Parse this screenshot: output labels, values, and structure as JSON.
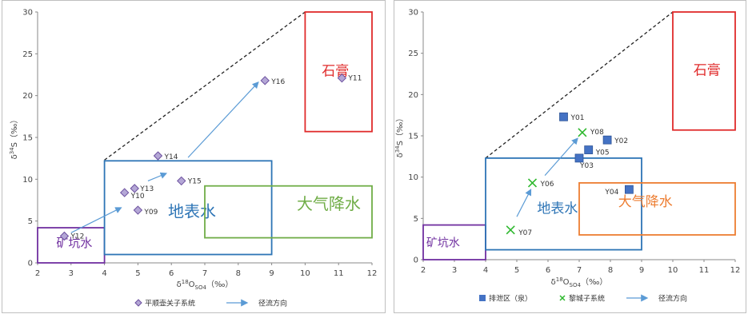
{
  "chart_data": [
    {
      "type": "scatter",
      "xlabel": "δ18OSO4（‰）",
      "ylabel": "δ34S（‰）",
      "xlim": [
        2,
        12
      ],
      "ylim": [
        0,
        30
      ],
      "xticks": [
        "2",
        "3",
        "4",
        "5",
        "6",
        "7",
        "8",
        "9",
        "10",
        "11",
        "12"
      ],
      "yticks": [
        "0",
        "5",
        "10",
        "15",
        "20",
        "25",
        "30"
      ],
      "series": [
        {
          "name": "平顺壶关子系统",
          "marker": "diamond",
          "color": "#8064a2",
          "points": [
            {
              "label": "Y12",
              "x": 2.8,
              "y": 3.2
            },
            {
              "label": "Y10",
              "x": 4.6,
              "y": 8.4
            },
            {
              "label": "Y13",
              "x": 4.9,
              "y": 8.9
            },
            {
              "label": "Y09",
              "x": 5.0,
              "y": 6.3
            },
            {
              "label": "Y14",
              "x": 5.6,
              "y": 12.8
            },
            {
              "label": "Y15",
              "x": 6.3,
              "y": 9.8
            },
            {
              "label": "Y16",
              "x": 8.8,
              "y": 21.8
            },
            {
              "label": "Y11",
              "x": 11.1,
              "y": 22.1
            }
          ]
        }
      ],
      "regions": [
        {
          "label": "矿坑水",
          "x": [
            2,
            4
          ],
          "y": [
            0,
            4.2
          ],
          "color": "#7030a0"
        },
        {
          "label": "地表水",
          "x": [
            4,
            9
          ],
          "y": [
            1.0,
            12.2
          ],
          "color": "#2e75b6"
        },
        {
          "label": "大气降水",
          "x": [
            7,
            12
          ],
          "y": [
            3.0,
            9.2
          ],
          "color": "#70ad47"
        },
        {
          "label": "石膏",
          "x": [
            10,
            12
          ],
          "y": [
            15.7,
            30
          ],
          "color": "#e02b2b"
        }
      ],
      "arrows": [
        {
          "from": [
            3.0,
            3.6
          ],
          "to": [
            4.5,
            6.6
          ]
        },
        {
          "from": [
            5.3,
            9.8
          ],
          "to": [
            5.85,
            10.7
          ]
        },
        {
          "from": [
            6.5,
            12.6
          ],
          "to": [
            8.6,
            21.6
          ]
        }
      ],
      "legend": [
        {
          "label": "平顺壶关子系统",
          "marker": "diamond"
        },
        {
          "label": "径流方向",
          "marker": "arrow"
        }
      ]
    },
    {
      "type": "scatter",
      "xlabel": "δ18OSO4（‰）",
      "ylabel": "δ34S（‰）",
      "xlim": [
        2,
        12
      ],
      "ylim": [
        0,
        30
      ],
      "xticks": [
        "2",
        "3",
        "4",
        "5",
        "6",
        "7",
        "8",
        "9",
        "10",
        "11",
        "12"
      ],
      "yticks": [
        "0",
        "5",
        "10",
        "15",
        "20",
        "25",
        "30"
      ],
      "series": [
        {
          "name": "排泄区（泉）",
          "marker": "square",
          "color": "#4472c4",
          "points": [
            {
              "label": "Y01",
              "x": 6.5,
              "y": 17.3
            },
            {
              "label": "Y02",
              "x": 7.9,
              "y": 14.5
            },
            {
              "label": "Y05",
              "x": 7.3,
              "y": 13.3
            },
            {
              "label": "Y03",
              "x": 7.0,
              "y": 12.3
            },
            {
              "label": "Y04",
              "x": 8.6,
              "y": 8.5
            }
          ]
        },
        {
          "name": "黎城子系统",
          "marker": "x",
          "color": "#2eb82e",
          "points": [
            {
              "label": "Y08",
              "x": 7.1,
              "y": 15.4
            },
            {
              "label": "Y06",
              "x": 5.5,
              "y": 9.3
            },
            {
              "label": "Y07",
              "x": 4.8,
              "y": 3.6
            }
          ]
        }
      ],
      "regions": [
        {
          "label": "矿坑水",
          "x": [
            2,
            4
          ],
          "y": [
            0,
            4.2
          ],
          "color": "#7030a0"
        },
        {
          "label": "地表水",
          "x": [
            4,
            9
          ],
          "y": [
            1.2,
            12.3
          ],
          "color": "#2e75b6"
        },
        {
          "label": "大气降水",
          "x": [
            7,
            12
          ],
          "y": [
            3.0,
            9.3
          ],
          "color": "#ed7d31"
        },
        {
          "label": "石膏",
          "x": [
            10,
            12
          ],
          "y": [
            15.7,
            30
          ],
          "color": "#e02b2b"
        }
      ],
      "arrows": [
        {
          "from": [
            5.0,
            5.2
          ],
          "to": [
            5.45,
            8.5
          ]
        },
        {
          "from": [
            5.9,
            10.2
          ],
          "to": [
            6.95,
            14.7
          ]
        }
      ],
      "legend": [
        {
          "label": "排泄区（泉）",
          "marker": "square"
        },
        {
          "label": "黎城子系统",
          "marker": "x"
        },
        {
          "label": "径流方向",
          "marker": "arrow"
        }
      ]
    }
  ]
}
